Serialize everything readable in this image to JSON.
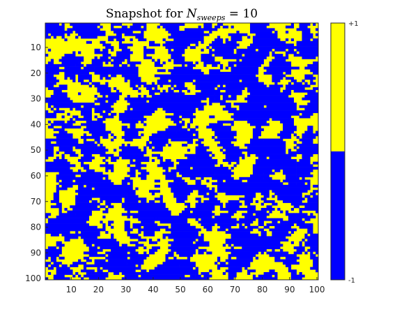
{
  "chart_data": {
    "type": "heatmap",
    "title": {
      "prefix": "Snapshot for ",
      "symbol": "N",
      "subscript": "sweeps",
      "suffix": " = 10"
    },
    "lattice_size": 100,
    "x_ticks": [
      10,
      20,
      30,
      40,
      50,
      60,
      70,
      80,
      90,
      100
    ],
    "y_ticks": [
      10,
      20,
      30,
      40,
      50,
      60,
      70,
      80,
      90,
      100
    ],
    "colorbar": {
      "top_label": "+1",
      "bottom_label": "-1",
      "values": [
        -1,
        1
      ],
      "colors": {
        "plus_one": "#ffff00",
        "minus_one": "#0000ff"
      }
    },
    "colors": {
      "plus_one": "#ffff00",
      "minus_one": "#0000ff",
      "axis": "#262626"
    },
    "grid": false
  }
}
